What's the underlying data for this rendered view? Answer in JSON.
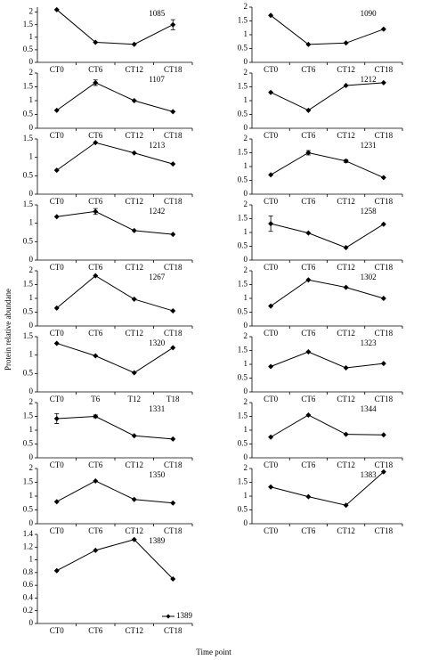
{
  "y_label": "Protein relative abundane",
  "x_label": "Time point",
  "chart_data": [
    {
      "type": "line",
      "title": "1085",
      "categories": [
        "CT0",
        "CT6",
        "CT12",
        "CT18"
      ],
      "series": [
        {
          "color": "#000000",
          "values": [
            2.1,
            0.8,
            0.72,
            1.5
          ],
          "errors": [
            null,
            null,
            null,
            0.2
          ]
        }
      ],
      "ylim": [
        0,
        2.2
      ],
      "yticks": [
        0,
        0.5,
        1,
        1.5,
        2
      ]
    },
    {
      "type": "line",
      "title": "1090",
      "categories": [
        "CT0",
        "CT6",
        "CT12",
        "CT18"
      ],
      "series": [
        {
          "color": "#000000",
          "values": [
            1.7,
            0.65,
            0.7,
            1.2
          ]
        }
      ],
      "ylim": [
        0,
        2
      ],
      "yticks": [
        0,
        0.5,
        1,
        1.5,
        2
      ]
    },
    {
      "type": "line",
      "title": "1107",
      "categories": [
        "CT0",
        "CT6",
        "CT12",
        "CT18"
      ],
      "series": [
        {
          "color": "#000000",
          "values": [
            0.65,
            1.65,
            1.0,
            0.6
          ],
          "errors": [
            null,
            0.1,
            null,
            null
          ]
        }
      ],
      "ylim": [
        0,
        2
      ],
      "yticks": [
        0,
        0.5,
        1,
        1.5,
        2
      ]
    },
    {
      "type": "line",
      "title": "1212",
      "categories": [
        "CT0",
        "CT6",
        "CT12",
        "CT18"
      ],
      "series": [
        {
          "color": "#000000",
          "values": [
            1.3,
            0.65,
            1.55,
            1.65
          ]
        }
      ],
      "ylim": [
        0,
        2
      ],
      "yticks": [
        0,
        0.5,
        1,
        1.5,
        2
      ]
    },
    {
      "type": "line",
      "title": "1213",
      "categories": [
        "CT0",
        "CT6",
        "CT12",
        "CT18"
      ],
      "series": [
        {
          "color": "#000000",
          "values": [
            0.65,
            1.4,
            1.12,
            0.82
          ]
        }
      ],
      "ylim": [
        0,
        1.5
      ],
      "yticks": [
        0,
        0.5,
        1,
        1.5
      ]
    },
    {
      "type": "line",
      "title": "1231",
      "categories": [
        "CT0",
        "CT6",
        "CT12",
        "CT18"
      ],
      "series": [
        {
          "color": "#000000",
          "values": [
            0.7,
            1.5,
            1.2,
            0.6
          ],
          "errors": [
            null,
            0.08,
            0.05,
            null
          ]
        }
      ],
      "ylim": [
        0,
        2
      ],
      "yticks": [
        0,
        0.5,
        1,
        1.5,
        2
      ]
    },
    {
      "type": "line",
      "title": "1242",
      "categories": [
        "CT0",
        "CT6",
        "CT12",
        "CT18"
      ],
      "series": [
        {
          "color": "#000000",
          "values": [
            1.18,
            1.32,
            0.8,
            0.7
          ],
          "errors": [
            null,
            0.08,
            null,
            null
          ]
        }
      ],
      "ylim": [
        0,
        1.5
      ],
      "yticks": [
        0,
        0.5,
        1,
        1.5
      ]
    },
    {
      "type": "line",
      "title": "1258",
      "categories": [
        "CT0",
        "CT6",
        "CT12",
        "CT18"
      ],
      "series": [
        {
          "color": "#000000",
          "values": [
            1.32,
            0.98,
            0.45,
            1.3
          ],
          "errors": [
            0.28,
            null,
            null,
            null
          ]
        }
      ],
      "ylim": [
        0,
        2
      ],
      "yticks": [
        0,
        0.5,
        1,
        1.5,
        2
      ]
    },
    {
      "type": "line",
      "title": "1267",
      "categories": [
        "CT0",
        "CT6",
        "CT12",
        "CT18"
      ],
      "series": [
        {
          "color": "#000000",
          "values": [
            0.65,
            1.82,
            0.97,
            0.55
          ]
        }
      ],
      "ylim": [
        0,
        2
      ],
      "yticks": [
        0,
        0.5,
        1,
        1.5,
        2
      ]
    },
    {
      "type": "line",
      "title": "1302",
      "categories": [
        "CT0",
        "CT6",
        "CT12",
        "CT18"
      ],
      "series": [
        {
          "color": "#000000",
          "values": [
            0.72,
            1.67,
            1.4,
            1.0
          ]
        }
      ],
      "ylim": [
        0,
        2
      ],
      "yticks": [
        0,
        0.5,
        1,
        1.5,
        2
      ]
    },
    {
      "type": "line",
      "title": "1320",
      "categories": [
        "CT0",
        "T6",
        "T12",
        "T18"
      ],
      "series": [
        {
          "color": "#000000",
          "values": [
            1.32,
            0.98,
            0.52,
            1.2
          ]
        }
      ],
      "ylim": [
        0,
        1.5
      ],
      "yticks": [
        0,
        0.5,
        1,
        1.5
      ]
    },
    {
      "type": "line",
      "title": "1323",
      "categories": [
        "CT0",
        "CT6",
        "CT12",
        "CT18"
      ],
      "series": [
        {
          "color": "#000000",
          "values": [
            0.92,
            1.45,
            0.87,
            1.03
          ]
        }
      ],
      "ylim": [
        0,
        2
      ],
      "yticks": [
        0,
        0.5,
        1,
        1.5,
        2
      ]
    },
    {
      "type": "line",
      "title": "1331",
      "categories": [
        "CT0",
        "CT6",
        "CT12",
        "CT18"
      ],
      "series": [
        {
          "color": "#000000",
          "values": [
            1.42,
            1.5,
            0.8,
            0.68
          ],
          "errors": [
            0.18,
            0.05,
            null,
            null
          ]
        }
      ],
      "ylim": [
        0,
        2
      ],
      "yticks": [
        0,
        0.5,
        1,
        1.5,
        2
      ]
    },
    {
      "type": "line",
      "title": "1344",
      "categories": [
        "CT0",
        "CT6",
        "CT12",
        "CT18"
      ],
      "series": [
        {
          "color": "#000000",
          "values": [
            0.75,
            1.55,
            0.85,
            0.83
          ]
        }
      ],
      "ylim": [
        0,
        2
      ],
      "yticks": [
        0,
        0.5,
        1,
        1.5,
        2
      ]
    },
    {
      "type": "line",
      "title": "1350",
      "categories": [
        "CT0",
        "CT6",
        "CT12",
        "CT18"
      ],
      "series": [
        {
          "color": "#000000",
          "values": [
            0.8,
            1.55,
            0.88,
            0.75
          ]
        }
      ],
      "ylim": [
        0,
        2
      ],
      "yticks": [
        0,
        0.5,
        1,
        1.5,
        2
      ]
    },
    {
      "type": "line",
      "title": "1383",
      "categories": [
        "CT0",
        "CT6",
        "CT12",
        "CT18"
      ],
      "series": [
        {
          "color": "#000000",
          "values": [
            1.33,
            0.98,
            0.67,
            1.88
          ]
        }
      ],
      "ylim": [
        0,
        2
      ],
      "yticks": [
        0,
        0.5,
        1,
        1.5,
        2
      ]
    },
    {
      "type": "line",
      "title": "1389",
      "categories": [
        "CT0",
        "CT6",
        "CT12",
        "CT18"
      ],
      "series": [
        {
          "name": "1389",
          "color": "#000000",
          "values": [
            0.83,
            1.15,
            1.32,
            0.7
          ]
        }
      ],
      "ylim": [
        0,
        1.4
      ],
      "yticks": [
        0,
        0.2,
        0.4,
        0.6,
        0.8,
        1,
        1.2,
        1.4
      ],
      "legend": "lower right"
    }
  ]
}
